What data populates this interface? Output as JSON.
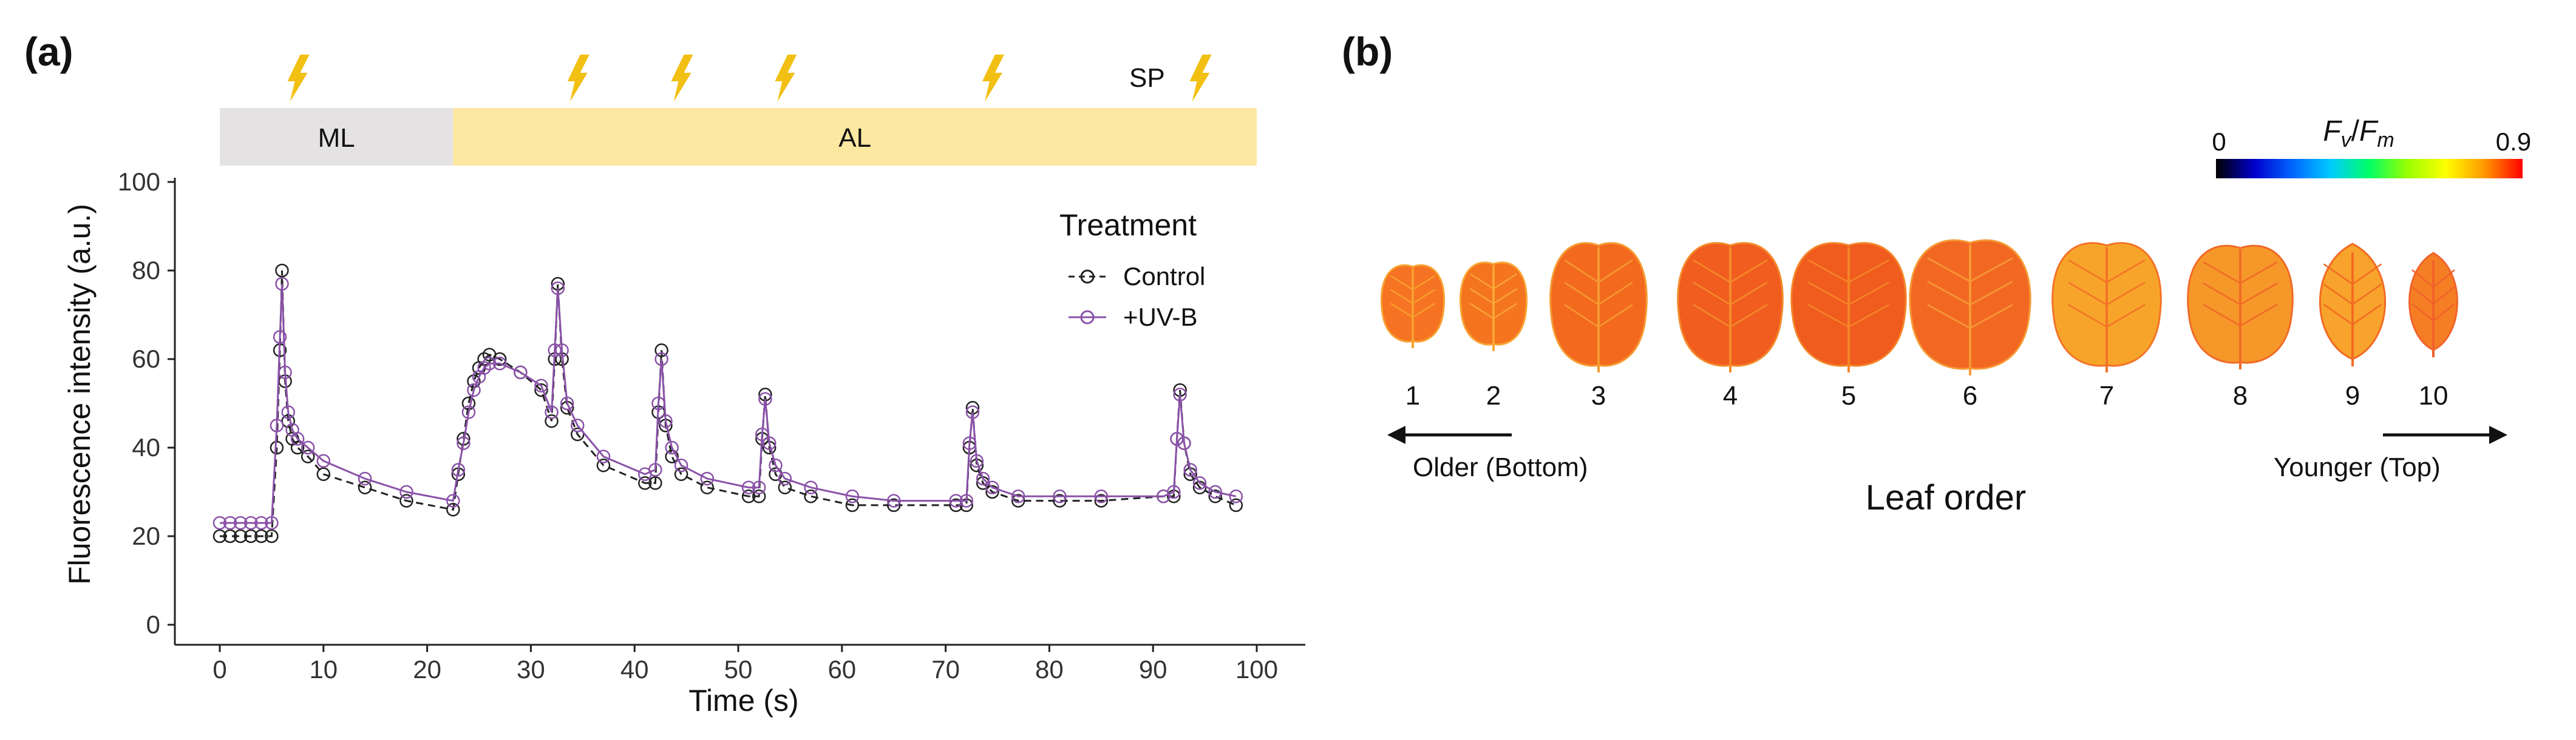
{
  "chart_data": [
    {
      "type": "line",
      "panel_label": "(a)",
      "xlabel": "Time (s)",
      "ylabel": "Fluorescence intensity (a.u.)",
      "xlim": [
        0,
        100
      ],
      "ylim": [
        0,
        100
      ],
      "xticks": [
        0,
        10,
        20,
        30,
        40,
        50,
        60,
        70,
        80,
        90,
        100
      ],
      "yticks": [
        0,
        20,
        40,
        60,
        80,
        100
      ],
      "light_phases": [
        {
          "label": "ML",
          "start": 0,
          "end": 22.5,
          "color": "#e4e2e3"
        },
        {
          "label": "AL",
          "start": 22.5,
          "end": 100,
          "color": "#fde8a1"
        }
      ],
      "saturating_pulses": {
        "label": "SP",
        "times": [
          7,
          34,
          44,
          54,
          74,
          94
        ],
        "color": "#f2c012"
      },
      "legend": {
        "title": "Treatment",
        "position": "top-right"
      },
      "series": [
        {
          "name": "Control",
          "style": "dashed",
          "color": "#222222",
          "x": [
            0,
            1,
            2,
            3,
            4,
            5,
            5.5,
            5.8,
            6.0,
            6.3,
            6.6,
            7,
            7.5,
            8.5,
            10,
            14,
            18,
            22.5,
            23,
            23.5,
            24,
            24.5,
            25,
            25.5,
            26,
            27,
            29,
            31,
            32,
            32.3,
            32.6,
            33,
            33.5,
            34.5,
            37,
            41,
            42,
            42.3,
            42.6,
            43,
            43.6,
            44.5,
            47,
            51,
            52,
            52.3,
            52.6,
            53,
            53.6,
            54.5,
            57,
            61,
            65,
            71,
            72,
            72.3,
            72.6,
            73,
            73.6,
            74.5,
            77,
            81,
            85,
            91,
            92,
            92.3,
            92.6,
            93,
            93.6,
            94.5,
            96,
            98
          ],
          "y": [
            20,
            20,
            20,
            20,
            20,
            20,
            40,
            62,
            80,
            55,
            46,
            42,
            40,
            38,
            34,
            31,
            28,
            26,
            34,
            42,
            50,
            55,
            58,
            60,
            61,
            60,
            57,
            53,
            46,
            60,
            77,
            60,
            49,
            43,
            36,
            32,
            32,
            48,
            62,
            45,
            38,
            34,
            31,
            29,
            29,
            42,
            52,
            40,
            34,
            31,
            29,
            27,
            27,
            27,
            27,
            40,
            49,
            36,
            32,
            30,
            28,
            28,
            28,
            29,
            29,
            42,
            53,
            41,
            34,
            31,
            29,
            27
          ]
        },
        {
          "name": "+UV-B",
          "style": "solid",
          "color": "#8a52a8",
          "x": [
            0,
            1,
            2,
            3,
            4,
            5,
            5.5,
            5.8,
            6.0,
            6.3,
            6.6,
            7,
            7.5,
            8.5,
            10,
            14,
            18,
            22.5,
            23,
            23.5,
            24,
            24.5,
            25,
            25.5,
            26,
            27,
            29,
            31,
            32,
            32.3,
            32.6,
            33,
            33.5,
            34.5,
            37,
            41,
            42,
            42.3,
            42.6,
            43,
            43.6,
            44.5,
            47,
            51,
            52,
            52.3,
            52.6,
            53,
            53.6,
            54.5,
            57,
            61,
            65,
            71,
            72,
            72.3,
            72.6,
            73,
            73.6,
            74.5,
            77,
            81,
            85,
            91,
            92,
            92.3,
            92.6,
            93,
            93.6,
            94.5,
            96,
            98
          ],
          "y": [
            23,
            23,
            23,
            23,
            23,
            23,
            45,
            65,
            77,
            57,
            48,
            44,
            42,
            40,
            37,
            33,
            30,
            28,
            35,
            41,
            48,
            53,
            56,
            58,
            59,
            59,
            57,
            54,
            48,
            62,
            76,
            62,
            50,
            45,
            38,
            34,
            35,
            50,
            60,
            46,
            40,
            36,
            33,
            31,
            31,
            43,
            51,
            41,
            36,
            33,
            31,
            29,
            28,
            28,
            28,
            41,
            48,
            37,
            33,
            31,
            29,
            29,
            29,
            29,
            30,
            42,
            52,
            41,
            35,
            32,
            30,
            29
          ]
        }
      ]
    },
    {
      "type": "image-series",
      "panel_label": "(b)",
      "title": "Leaf order",
      "colorbar": {
        "label_main": "F",
        "label_sub1": "v",
        "label_sub2": "m",
        "separator": "/",
        "min": "0",
        "max": "0.9",
        "colors": [
          "#000000",
          "#0000cc",
          "#0066ff",
          "#00ccff",
          "#00ff66",
          "#99ff00",
          "#ffff00",
          "#ff9900",
          "#ff0000"
        ]
      },
      "leaves": [
        {
          "label": "1",
          "fvfm": 0.8,
          "color": "#f57322",
          "vein": "#f7a030"
        },
        {
          "label": "2",
          "fvfm": 0.8,
          "color": "#f4741f",
          "vein": "#f8a534"
        },
        {
          "label": "3",
          "fvfm": 0.82,
          "color": "#f36a1f",
          "vein": "#f59a30"
        },
        {
          "label": "4",
          "fvfm": 0.84,
          "color": "#f05d1f",
          "vein": "#f48a2a"
        },
        {
          "label": "5",
          "fvfm": 0.84,
          "color": "#f05b1e",
          "vein": "#f48528"
        },
        {
          "label": "6",
          "fvfm": 0.83,
          "color": "#f26823",
          "vein": "#f69a36"
        },
        {
          "label": "7",
          "fvfm": 0.74,
          "color": "#f7a52a",
          "vein": "#f37228"
        },
        {
          "label": "8",
          "fvfm": 0.75,
          "color": "#f6972a",
          "vein": "#f06a26"
        },
        {
          "label": "9",
          "fvfm": 0.74,
          "color": "#f7a32c",
          "vein": "#f26a22"
        },
        {
          "label": "10",
          "fvfm": 0.79,
          "color": "#f57e24",
          "vein": "#f1622a"
        }
      ],
      "older_label": "Older (Bottom)",
      "younger_label": "Younger (Top)"
    }
  ]
}
